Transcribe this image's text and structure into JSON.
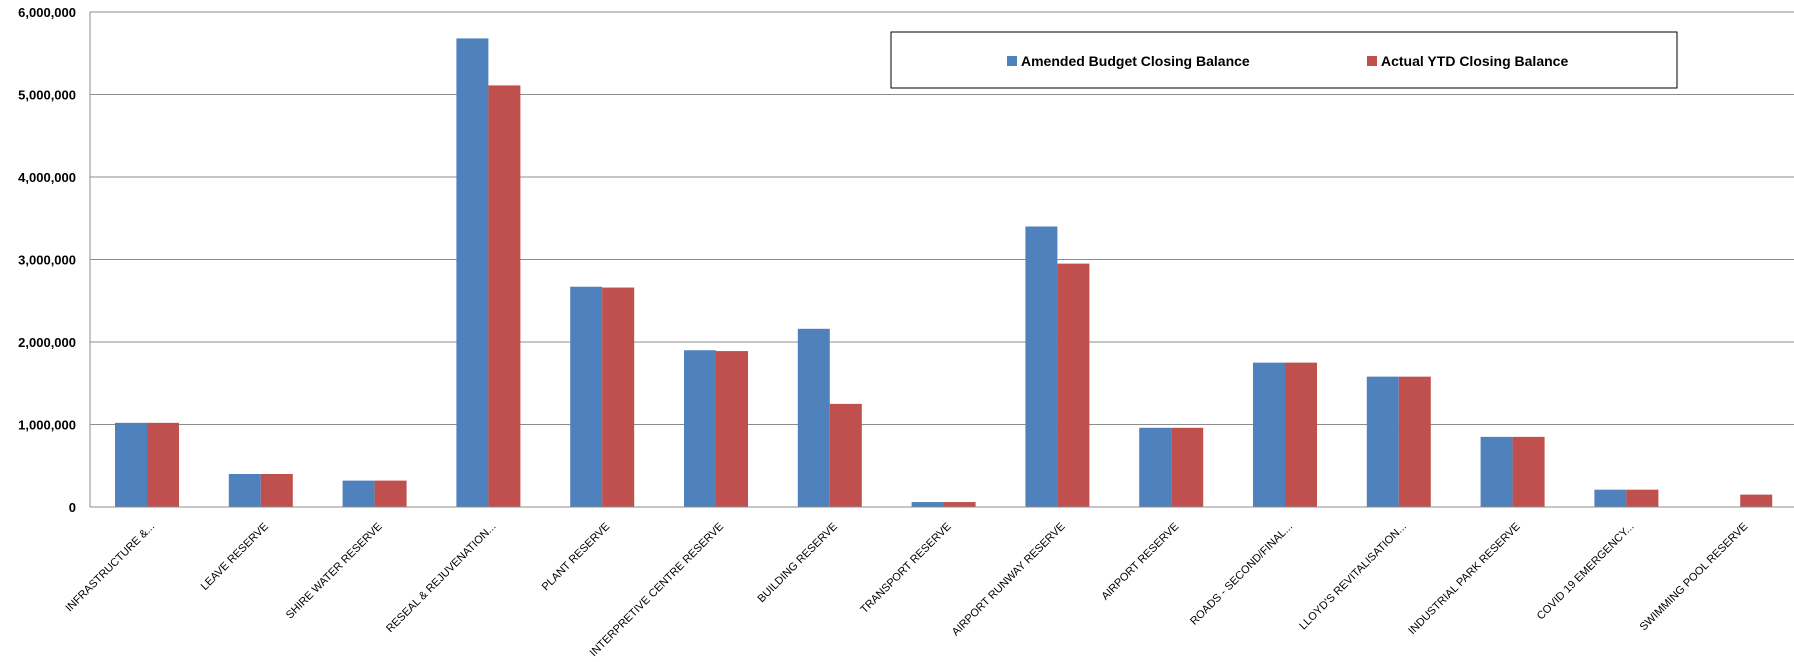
{
  "chart_data": {
    "type": "bar",
    "title": "",
    "xlabel": "",
    "ylabel": "",
    "ylim": [
      0,
      6000000
    ],
    "yticks": [
      0,
      1000000,
      2000000,
      3000000,
      4000000,
      5000000,
      6000000
    ],
    "ytick_labels": [
      "0",
      "1,000,000",
      "2,000,000",
      "3,000,000",
      "4,000,000",
      "5,000,000",
      "6,000,000"
    ],
    "grid": true,
    "legend_position": "top-right",
    "categories": [
      "INFRASTRUCTURE &...",
      "LEAVE RESERVE",
      "SHIRE WATER RESERVE",
      "RESEAL & REJUVENATION...",
      "PLANT RESERVE",
      "INTERPRETIVE CENTRE RESERVE",
      "BUILDING RESERVE",
      "TRANSPORT RESERVE",
      "AIRPORT RUNWAY RESERVE",
      "AIRPORT RESERVE",
      "ROADS - SECOND/FINAL...",
      "LLOYD'S REVITALISATION...",
      "INDUSTRIAL PARK RESERVE",
      "COVID 19 EMERGENCY...",
      "SWIMMING POOL RESERVE"
    ],
    "series": [
      {
        "name": "Amended Budget Closing Balance",
        "color": "#4F81BD",
        "values": [
          1020000,
          400000,
          320000,
          5680000,
          2670000,
          1900000,
          2160000,
          60000,
          3400000,
          960000,
          1750000,
          1580000,
          850000,
          210000,
          0
        ]
      },
      {
        "name": "Actual YTD Closing Balance",
        "color": "#C0504D",
        "values": [
          1020000,
          400000,
          320000,
          5110000,
          2660000,
          1890000,
          1250000,
          60000,
          2950000,
          960000,
          1750000,
          1580000,
          850000,
          210000,
          150000
        ]
      }
    ]
  }
}
